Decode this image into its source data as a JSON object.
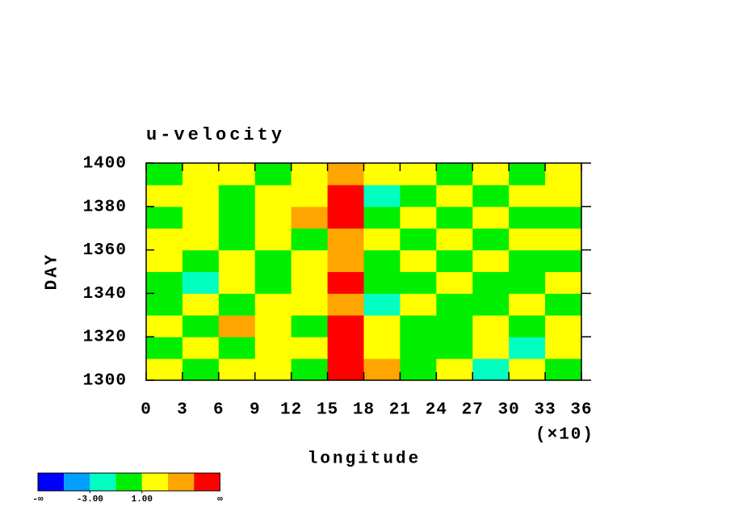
{
  "chart_data": {
    "type": "heatmap",
    "title": "u-velocity",
    "x_label": "longitude",
    "y_label": "DAY",
    "x_multiplier": "(×10)",
    "xlim": [
      0,
      36
    ],
    "xticks": [
      0,
      3,
      6,
      9,
      12,
      15,
      18,
      21,
      24,
      27,
      30,
      33,
      36
    ],
    "ylim": [
      1300,
      1400
    ],
    "yticks": [
      1300,
      1320,
      1340,
      1360,
      1380,
      1400
    ],
    "x": [
      1.5,
      4.5,
      7.5,
      10.5,
      13.5,
      16.5,
      19.5,
      22.5,
      25.5,
      28.5,
      31.5,
      34.5
    ],
    "y": [
      1305,
      1315,
      1325,
      1335,
      1345,
      1355,
      1365,
      1375,
      1385,
      1395
    ],
    "z": [
      [
        1,
        0,
        2,
        1,
        -1,
        6,
        3,
        0,
        1,
        -2,
        1,
        0
      ],
      [
        0,
        2,
        -1,
        1,
        2,
        6,
        1,
        -1,
        0,
        1,
        -2,
        2
      ],
      [
        2,
        0,
        3,
        1,
        0,
        6,
        2,
        0,
        -1,
        1,
        0,
        1
      ],
      [
        -1,
        1,
        0,
        2,
        1,
        4,
        -2,
        1,
        0,
        -1,
        2,
        0
      ],
      [
        0,
        -2,
        1,
        0,
        2,
        6,
        -1,
        0,
        1,
        0,
        -1,
        2
      ],
      [
        1,
        0,
        2,
        -1,
        1,
        3,
        0,
        2,
        -1,
        1,
        0,
        -1
      ],
      [
        2,
        1,
        0,
        1,
        0,
        4,
        1,
        -1,
        2,
        0,
        1,
        2
      ],
      [
        0,
        1,
        -1,
        2,
        3,
        6,
        0,
        1,
        0,
        2,
        -1,
        0
      ],
      [
        1,
        2,
        0,
        1,
        2,
        6,
        -2,
        0,
        1,
        -1,
        2,
        1
      ],
      [
        0,
        1,
        2,
        0,
        1,
        3,
        2,
        1,
        -1,
        1,
        0,
        1
      ]
    ],
    "colorbar": {
      "colors": [
        "#0000ff",
        "#00a0ff",
        "#00ffc0",
        "#00ee00",
        "#ffff00",
        "#ffa500",
        "#ff0000"
      ],
      "bounds": [
        -5,
        -3,
        -1,
        1,
        3,
        5
      ],
      "ticks": [
        {
          "value": -3,
          "label": "-3.00"
        },
        {
          "value": 1,
          "label": "1.00"
        }
      ],
      "low_label": "-∞",
      "high_label": "∞"
    }
  }
}
